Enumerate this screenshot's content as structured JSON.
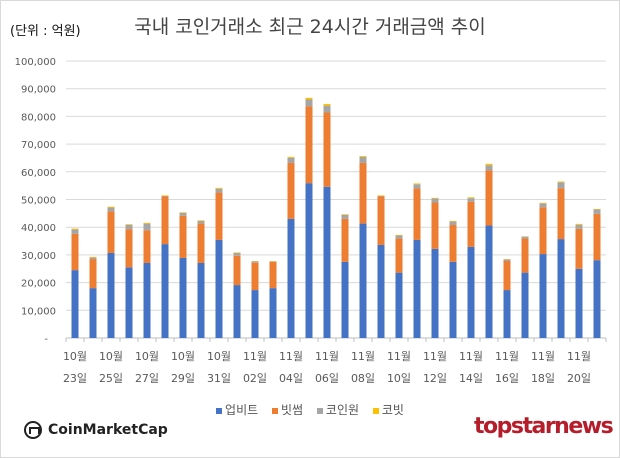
{
  "chart_data": {
    "type": "bar",
    "stacked": true,
    "title": "국내 코인거래소 최근 24시간 거래금액 추이",
    "unit_label": "(단위 : 억원)",
    "ylim": [
      0,
      100000
    ],
    "yticks": [
      "-",
      "10,000",
      "20,000",
      "30,000",
      "40,000",
      "50,000",
      "60,000",
      "70,000",
      "80,000",
      "90,000",
      "100,000"
    ],
    "grid": true,
    "legend_position": "bottom",
    "categories": [
      "10/23",
      "10/24",
      "10/25",
      "10/26",
      "10/27",
      "10/28",
      "10/29",
      "10/30",
      "10/31",
      "11/01",
      "11/02",
      "11/03",
      "11/04",
      "11/05",
      "11/06",
      "11/07",
      "11/08",
      "11/09",
      "11/10",
      "11/11",
      "11/12",
      "11/13",
      "11/14",
      "11/15",
      "11/16",
      "11/17",
      "11/18",
      "11/19",
      "11/20",
      "11/21"
    ],
    "tick_labels": [
      {
        "month": "10월",
        "day": "23일"
      },
      {
        "month": "10월",
        "day": "25일"
      },
      {
        "month": "10월",
        "day": "27일"
      },
      {
        "month": "10월",
        "day": "29일"
      },
      {
        "month": "10월",
        "day": "31일"
      },
      {
        "month": "11월",
        "day": "02일"
      },
      {
        "month": "11월",
        "day": "04일"
      },
      {
        "month": "11월",
        "day": "06일"
      },
      {
        "month": "11월",
        "day": "08일"
      },
      {
        "month": "11월",
        "day": "10일"
      },
      {
        "month": "11월",
        "day": "12일"
      },
      {
        "month": "11월",
        "day": "14일"
      },
      {
        "month": "11월",
        "day": "16일"
      },
      {
        "month": "11월",
        "day": "18일"
      },
      {
        "month": "11월",
        "day": "20일"
      }
    ],
    "series": [
      {
        "name": "업비트",
        "color": "#4472c4",
        "values": [
          24500,
          18000,
          30700,
          25500,
          27100,
          33900,
          28900,
          27100,
          35400,
          19100,
          17300,
          18000,
          43000,
          55900,
          54600,
          27500,
          41300,
          33600,
          23600,
          35400,
          32200,
          27500,
          32900,
          40600,
          17300,
          23600,
          30300,
          35700,
          25000,
          28100
        ]
      },
      {
        "name": "빗썸",
        "color": "#ed7d31",
        "values": [
          13100,
          10500,
          15000,
          13800,
          11800,
          17200,
          15200,
          14200,
          17100,
          10600,
          9900,
          9500,
          20200,
          27700,
          26800,
          15500,
          21900,
          17500,
          12300,
          18600,
          16700,
          13300,
          16300,
          19900,
          10500,
          12300,
          16900,
          18400,
          14400,
          16700
        ]
      },
      {
        "name": "코인원",
        "color": "#a5a5a5",
        "values": [
          1600,
          600,
          1400,
          1600,
          2400,
          200,
          1100,
          1000,
          1400,
          1000,
          500,
          200,
          1900,
          2500,
          2500,
          1500,
          2200,
          200,
          1100,
          1500,
          1500,
          1300,
          1300,
          1900,
          600,
          700,
          1400,
          2100,
          1500,
          1600
        ]
      },
      {
        "name": "코빗",
        "color": "#ffc000",
        "values": [
          300,
          200,
          300,
          200,
          300,
          200,
          200,
          200,
          300,
          200,
          100,
          100,
          300,
          600,
          600,
          200,
          300,
          200,
          200,
          300,
          200,
          200,
          300,
          500,
          100,
          100,
          200,
          300,
          300,
          200
        ]
      }
    ]
  },
  "branding": {
    "left": "CoinMarketCap",
    "right": "topstarnews"
  }
}
